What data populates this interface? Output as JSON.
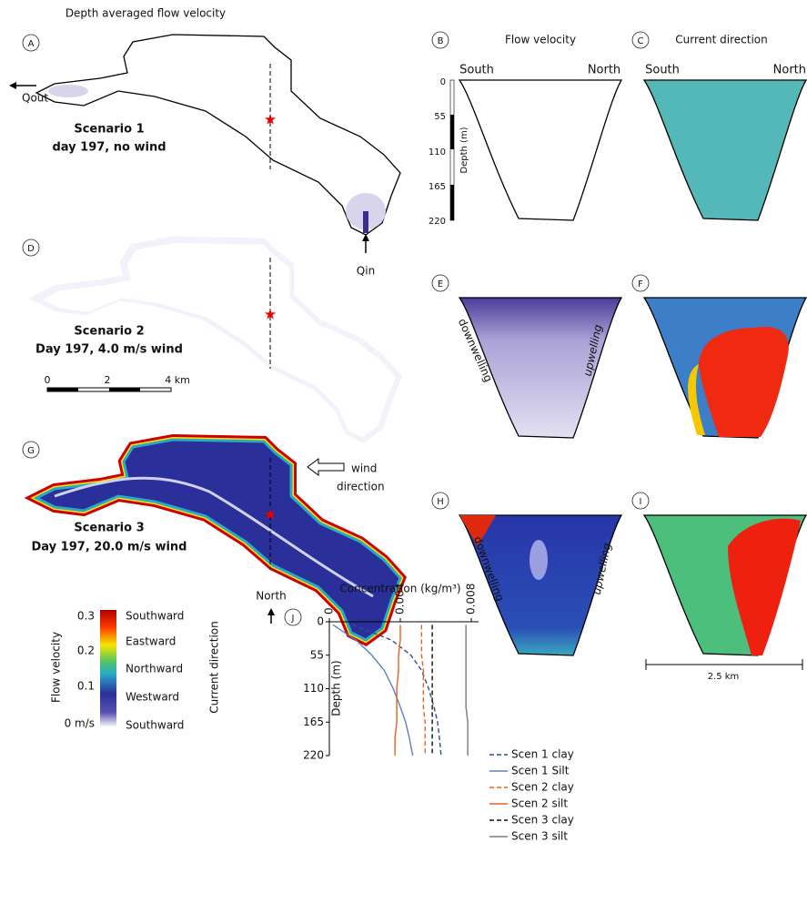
{
  "figure": {
    "title": "Depth averaged flow velocity",
    "panel_a": {
      "label": "A",
      "outflow": "Qout",
      "inflow": "Qin",
      "scenario": "Scenario 1",
      "caption": "day 197, no wind"
    },
    "panel_d": {
      "label": "D",
      "scenario": "Scenario 2",
      "caption": "Day 197, 4.0 m/s wind",
      "scale_bar": [
        "0",
        "2",
        "4 km"
      ]
    },
    "panel_g": {
      "label": "G",
      "scenario": "Scenario 3",
      "caption": "Day 197, 20.0 m/s wind",
      "wind": [
        "wind",
        "direction"
      ],
      "north": "North"
    },
    "colorbar": {
      "title": "Flow velocity",
      "ticks": [
        "0.3",
        "0.2",
        "0.1",
        "0 m/s"
      ],
      "directions": [
        "Southward",
        "Eastward",
        "Northward",
        "Westward",
        "Southward"
      ],
      "direction_title": "Current direction"
    },
    "panel_b": {
      "label": "B",
      "title": "Flow velocity",
      "south": "South",
      "north": "North",
      "depth_label": "Depth (m)",
      "depth_ticks": [
        "0",
        "55",
        "110",
        "165",
        "220"
      ]
    },
    "panel_c": {
      "label": "C",
      "title": "Current direction",
      "south": "South",
      "north": "North"
    },
    "panel_e": {
      "label": "E",
      "left": "downwelling",
      "right": "upwelling"
    },
    "panel_f": {
      "label": "F"
    },
    "panel_h": {
      "label": "H",
      "left": "downwelling",
      "right": "upwelling"
    },
    "panel_i": {
      "label": "I",
      "scale": "2.5 km"
    },
    "panel_j": {
      "label": "J"
    }
  },
  "chart_data": {
    "type": "line",
    "title": "Concentration (kg/m³)",
    "y_label": "Depth (m)",
    "y": [
      5,
      30,
      55,
      80,
      110,
      140,
      165,
      190,
      220
    ],
    "xlim": [
      0,
      0.008
    ],
    "xticks": [
      0,
      0.004,
      0.008
    ],
    "ylim": [
      0,
      220
    ],
    "yticks": [
      0,
      55,
      110,
      165,
      220
    ],
    "series": [
      {
        "name": "Scen 1 clay",
        "color": "#2e4f8c",
        "dashed": true,
        "values": [
          0.0013,
          0.0035,
          0.0046,
          0.0052,
          0.0056,
          0.0059,
          0.0061,
          0.0062,
          0.0063
        ]
      },
      {
        "name": "Scen 1 Silt",
        "color": "#5b7fc4",
        "dashed": false,
        "values": [
          0.0002,
          0.0015,
          0.0024,
          0.0031,
          0.0036,
          0.004,
          0.0043,
          0.0045,
          0.0047
        ]
      },
      {
        "name": "Scen 2 clay",
        "color": "#e8601c",
        "dashed": true,
        "values": [
          0.0052,
          0.0052,
          0.0052,
          0.0053,
          0.0053,
          0.0053,
          0.0054,
          0.0054,
          0.0054
        ]
      },
      {
        "name": "Scen 2 silt",
        "color": "#e8601c",
        "dashed": false,
        "values": [
          0.004,
          0.004,
          0.0039,
          0.0039,
          0.0038,
          0.0038,
          0.0038,
          0.0037,
          0.0037
        ]
      },
      {
        "name": "Scen 3 clay",
        "color": "#111111",
        "dashed": true,
        "values": [
          0.0058,
          0.0058,
          0.0058,
          0.0058,
          0.0058,
          0.0058,
          0.0058,
          0.0058,
          0.0058
        ]
      },
      {
        "name": "Scen 3 silt",
        "color": "#7a7a7a",
        "dashed": false,
        "values": [
          0.0077,
          0.0077,
          0.0077,
          0.0077,
          0.0077,
          0.0077,
          0.0078,
          0.0078,
          0.0078
        ]
      }
    ]
  }
}
